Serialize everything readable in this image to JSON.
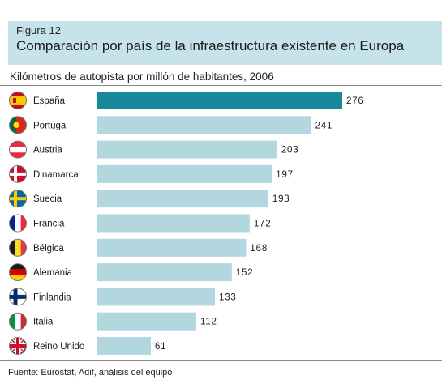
{
  "figure": {
    "label": "Figura 12",
    "title": "Comparación por país de la infraestructura existente en Europa"
  },
  "source": "Fuente: Eurostat, Adif, análisis del equipo",
  "colors": {
    "header_bg": "#c6e2ea",
    "highlight_bar": "#17879a",
    "bar": "#b3d7df"
  },
  "chart_data": {
    "type": "bar",
    "orientation": "horizontal",
    "title": "Kilómetros de autopista por millón de habitantes, 2006",
    "categories": [
      "España",
      "Portugal",
      "Austria",
      "Dinamarca",
      "Suecia",
      "Francia",
      "Bélgica",
      "Alemania",
      "Finlandia",
      "Italia",
      "Reino Unido"
    ],
    "values": [
      276,
      241,
      203,
      197,
      193,
      172,
      168,
      152,
      133,
      112,
      61
    ],
    "highlight": "España",
    "flag_icons": [
      "spain-flag-icon",
      "portugal-flag-icon",
      "austria-flag-icon",
      "denmark-flag-icon",
      "sweden-flag-icon",
      "france-flag-icon",
      "belgium-flag-icon",
      "germany-flag-icon",
      "finland-flag-icon",
      "italy-flag-icon",
      "uk-flag-icon"
    ],
    "xlim": [
      0,
      276
    ],
    "grid": false,
    "legend": "none"
  }
}
